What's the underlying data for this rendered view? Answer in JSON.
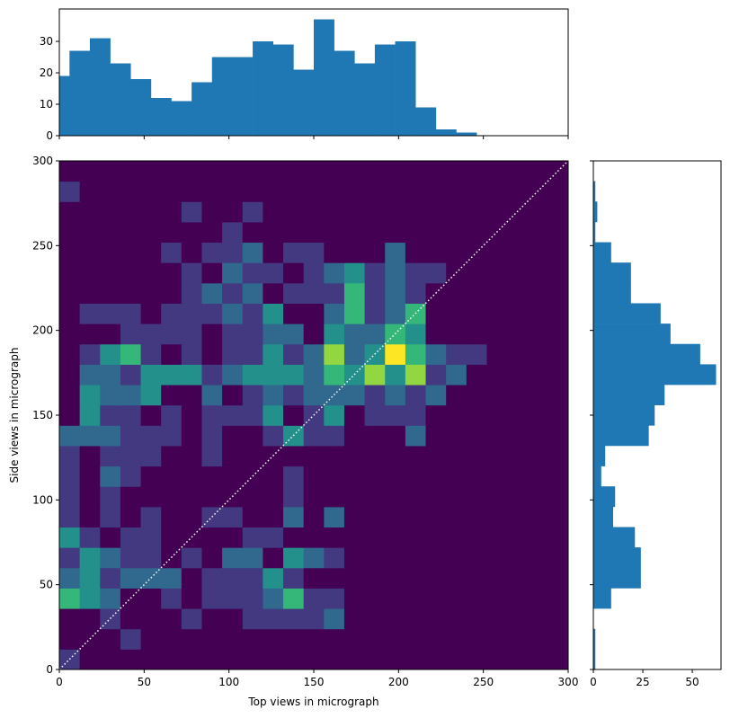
{
  "chart_data": [
    {
      "type": "histogram",
      "orientation": "vertical",
      "color": "#1f77b4",
      "bins": [
        -6,
        6,
        18,
        30,
        42,
        54,
        66,
        78,
        90,
        102,
        114,
        126,
        138,
        150,
        162,
        174,
        186,
        198,
        210,
        222,
        234,
        246
      ],
      "values": [
        19,
        27,
        31,
        23,
        18,
        12,
        11,
        17,
        25,
        25,
        30,
        29,
        21,
        37,
        27,
        23,
        29,
        30,
        9,
        2,
        1
      ],
      "xlim": [
        0,
        300
      ],
      "xticks": [
        0,
        50,
        100,
        150,
        200,
        250,
        300
      ],
      "xtick_labels": false,
      "ylim": [
        0,
        40.3
      ],
      "yticks": [
        0,
        10,
        20,
        30
      ]
    },
    {
      "type": "heatmap",
      "x_label": "Top views in micrograph",
      "y_label": "Side views in micrograph",
      "colormap": "viridis",
      "zlim": [
        0,
        6
      ],
      "x_bins": [
        0,
        12,
        24,
        36,
        48,
        60,
        72,
        84,
        96,
        108,
        120,
        132,
        144,
        156,
        168,
        180,
        192,
        204,
        216,
        228,
        240,
        252,
        264,
        276,
        288,
        300
      ],
      "y_bins": [
        0,
        12,
        24,
        36,
        48,
        60,
        72,
        84,
        96,
        108,
        120,
        132,
        144,
        156,
        168,
        180,
        192,
        204,
        216,
        228,
        240,
        252,
        264,
        276,
        288,
        300
      ],
      "z": [
        [
          1,
          0,
          0,
          0,
          0,
          0,
          0,
          0,
          0,
          0,
          0,
          0,
          0,
          0,
          0,
          0,
          0,
          0,
          0,
          0,
          0,
          0,
          0,
          0,
          0
        ],
        [
          0,
          0,
          0,
          1,
          0,
          0,
          0,
          0,
          0,
          0,
          0,
          0,
          0,
          0,
          0,
          0,
          0,
          0,
          0,
          0,
          0,
          0,
          0,
          0,
          0
        ],
        [
          0,
          0,
          1,
          0,
          0,
          0,
          1,
          0,
          0,
          1,
          1,
          1,
          1,
          2,
          0,
          0,
          0,
          0,
          0,
          0,
          0,
          0,
          0,
          0,
          0
        ],
        [
          4,
          3,
          2,
          0,
          0,
          1,
          0,
          1,
          1,
          1,
          2,
          4,
          1,
          1,
          0,
          0,
          0,
          0,
          0,
          0,
          0,
          0,
          0,
          0,
          0
        ],
        [
          2,
          3,
          1,
          2,
          2,
          2,
          0,
          1,
          1,
          1,
          3,
          1,
          0,
          0,
          0,
          0,
          0,
          0,
          0,
          0,
          0,
          0,
          0,
          0,
          0
        ],
        [
          1,
          3,
          2,
          1,
          1,
          0,
          1,
          0,
          2,
          2,
          0,
          3,
          2,
          1,
          0,
          0,
          0,
          0,
          0,
          0,
          0,
          0,
          0,
          0,
          0
        ],
        [
          3,
          1,
          0,
          1,
          1,
          0,
          0,
          0,
          0,
          1,
          1,
          0,
          0,
          0,
          0,
          0,
          0,
          0,
          0,
          0,
          0,
          0,
          0,
          0,
          0
        ],
        [
          1,
          0,
          1,
          0,
          1,
          0,
          0,
          1,
          1,
          0,
          0,
          2,
          0,
          2,
          0,
          0,
          0,
          0,
          0,
          0,
          0,
          0,
          0,
          0,
          0
        ],
        [
          1,
          0,
          1,
          0,
          0,
          0,
          0,
          0,
          0,
          0,
          0,
          1,
          0,
          0,
          0,
          0,
          0,
          0,
          0,
          0,
          0,
          0,
          0,
          0,
          0
        ],
        [
          1,
          0,
          2,
          1,
          0,
          0,
          0,
          0,
          0,
          0,
          0,
          1,
          0,
          0,
          0,
          0,
          0,
          0,
          0,
          0,
          0,
          0,
          0,
          0,
          0
        ],
        [
          1,
          0,
          1,
          1,
          1,
          0,
          0,
          1,
          0,
          0,
          0,
          0,
          0,
          0,
          0,
          0,
          0,
          0,
          0,
          0,
          0,
          0,
          0,
          0,
          0
        ],
        [
          2,
          2,
          2,
          1,
          1,
          1,
          0,
          1,
          0,
          0,
          1,
          3,
          1,
          1,
          0,
          0,
          0,
          2,
          0,
          0,
          0,
          0,
          0,
          0,
          0
        ],
        [
          0,
          3,
          1,
          1,
          0,
          1,
          0,
          1,
          1,
          1,
          3,
          0,
          1,
          3,
          0,
          1,
          1,
          1,
          0,
          0,
          0,
          0,
          0,
          0,
          0
        ],
        [
          0,
          3,
          2,
          2,
          3,
          0,
          0,
          2,
          0,
          1,
          2,
          1,
          2,
          2,
          2,
          1,
          2,
          1,
          2,
          0,
          0,
          0,
          0,
          0,
          0
        ],
        [
          0,
          2,
          2,
          1,
          3,
          3,
          3,
          1,
          2,
          3,
          3,
          3,
          2,
          4,
          3,
          5,
          3,
          5,
          1,
          2,
          0,
          0,
          0,
          0,
          0
        ],
        [
          0,
          1,
          3,
          4,
          1,
          0,
          1,
          0,
          1,
          1,
          3,
          1,
          2,
          5,
          2,
          3,
          6,
          4,
          2,
          1,
          1,
          0,
          0,
          0,
          0
        ],
        [
          0,
          0,
          0,
          1,
          1,
          1,
          1,
          0,
          1,
          1,
          2,
          2,
          0,
          3,
          2,
          2,
          4,
          3,
          0,
          0,
          0,
          0,
          0,
          0,
          0
        ],
        [
          0,
          1,
          1,
          1,
          0,
          1,
          1,
          1,
          2,
          1,
          3,
          0,
          0,
          2,
          4,
          1,
          2,
          4,
          0,
          0,
          0,
          0,
          0,
          0,
          0
        ],
        [
          0,
          0,
          0,
          0,
          0,
          0,
          1,
          2,
          1,
          2,
          0,
          1,
          1,
          1,
          4,
          1,
          2,
          1,
          0,
          0,
          0,
          0,
          0,
          0,
          0
        ],
        [
          0,
          0,
          0,
          0,
          0,
          0,
          1,
          0,
          2,
          1,
          1,
          0,
          1,
          2,
          3,
          1,
          2,
          1,
          1,
          0,
          0,
          0,
          0,
          0,
          0
        ],
        [
          0,
          0,
          0,
          0,
          0,
          1,
          0,
          1,
          1,
          2,
          0,
          1,
          1,
          0,
          0,
          0,
          2,
          0,
          0,
          0,
          0,
          0,
          0,
          0,
          0
        ],
        [
          0,
          0,
          0,
          0,
          0,
          0,
          0,
          0,
          1,
          0,
          0,
          0,
          0,
          0,
          0,
          0,
          0,
          0,
          0,
          0,
          0,
          0,
          0,
          0,
          0
        ],
        [
          0,
          0,
          0,
          0,
          0,
          0,
          1,
          0,
          0,
          1,
          0,
          0,
          0,
          0,
          0,
          0,
          0,
          0,
          0,
          0,
          0,
          0,
          0,
          0,
          0
        ],
        [
          1,
          0,
          0,
          0,
          0,
          0,
          0,
          0,
          0,
          0,
          0,
          0,
          0,
          0,
          0,
          0,
          0,
          0,
          0,
          0,
          0,
          0,
          0,
          0,
          0
        ],
        [
          0,
          0,
          0,
          0,
          0,
          0,
          0,
          0,
          0,
          0,
          0,
          0,
          0,
          0,
          0,
          0,
          0,
          0,
          0,
          0,
          0,
          0,
          0,
          0,
          0
        ]
      ],
      "reference_line": {
        "x": [
          0,
          300
        ],
        "y": [
          0,
          300
        ],
        "color": "#ffffff",
        "style": "dotted"
      },
      "xlim": [
        0,
        300
      ],
      "xticks": [
        0,
        50,
        100,
        150,
        200,
        250,
        300
      ],
      "ylim": [
        0,
        300
      ],
      "yticks": [
        0,
        50,
        100,
        150,
        200,
        250,
        300
      ]
    },
    {
      "type": "histogram",
      "orientation": "horizontal",
      "color": "#1f77b4",
      "bins": [
        0,
        12,
        24,
        36,
        48,
        60,
        72,
        84,
        96,
        108,
        120,
        132,
        144,
        156,
        168,
        180,
        192,
        204,
        216,
        228,
        240,
        252,
        264,
        276,
        288
      ],
      "values": [
        1,
        1,
        0,
        9,
        24,
        24,
        21,
        10,
        11,
        4,
        6,
        28,
        31,
        36,
        62,
        54,
        39,
        34,
        19,
        19,
        9,
        1,
        2,
        1
      ],
      "xlim": [
        0,
        64.5
      ],
      "xticks": [
        0,
        25,
        50
      ],
      "ylim": [
        0,
        300
      ],
      "yticks": [
        0,
        50,
        100,
        150,
        200,
        250,
        300
      ],
      "ytick_labels": false
    }
  ]
}
